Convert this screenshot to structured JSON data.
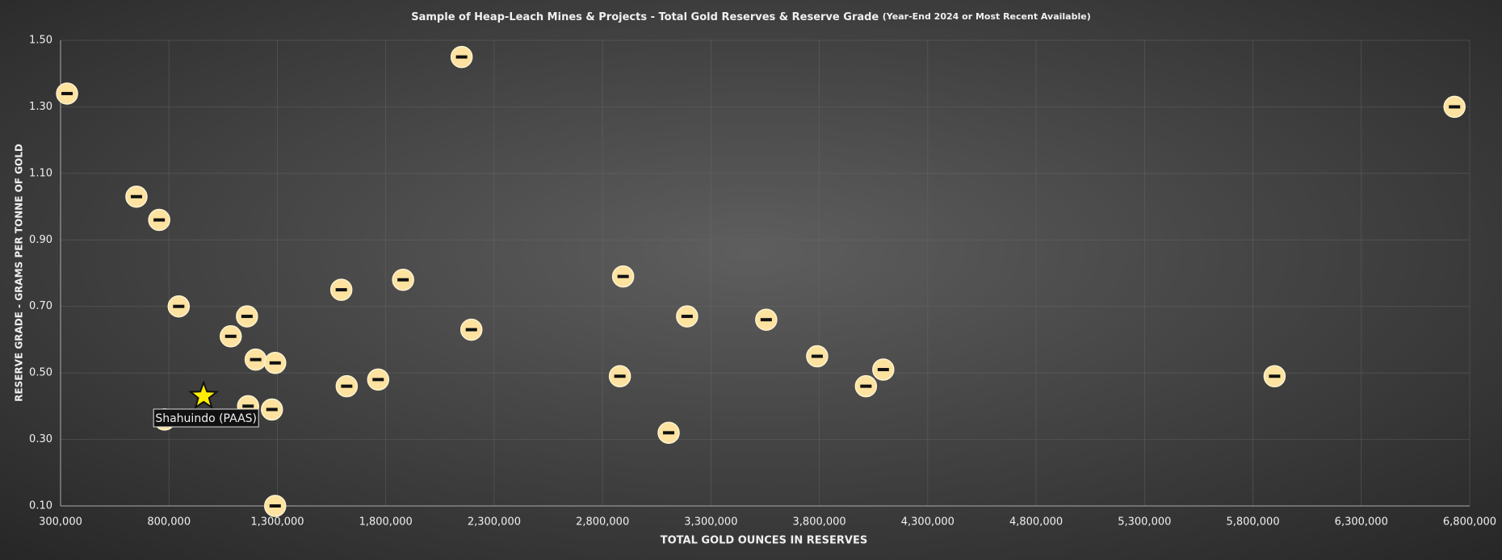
{
  "chart_data": {
    "type": "scatter",
    "title": "Sample of Heap-Leach Mines & Projects - Total Gold Reserves & Reserve Grade",
    "subtitle": "(Year-End 2024 or Most Recent Available)",
    "x_label": "TOTAL GOLD OUNCES IN RESERVES",
    "y_label": "RESERVE GRADE - GRAMS PER TONNE OF GOLD",
    "color": "#fde2a0",
    "x": [
      330000,
      2150000,
      6730000,
      650000,
      755000,
      845000,
      1160000,
      1085000,
      1200000,
      1290000,
      1595000,
      1880000,
      2195000,
      1620000,
      1765000,
      1165000,
      1275000,
      1290000,
      2895000,
      3190000,
      3555000,
      2880000,
      3105000,
      3790000,
      4015000,
      4095000,
      5900000,
      780000
    ],
    "values": [
      1.34,
      1.45,
      1.3,
      1.03,
      0.96,
      0.7,
      0.67,
      0.61,
      0.54,
      0.53,
      0.75,
      0.78,
      0.63,
      0.46,
      0.48,
      0.4,
      0.39,
      0.1,
      0.79,
      0.67,
      0.66,
      0.49,
      0.32,
      0.55,
      0.46,
      0.51,
      0.49,
      0.36
    ],
    "highlight": {
      "x": 960000,
      "value": 0.43,
      "label": "Shahuindo (PAAS)",
      "color": "#ffee00"
    },
    "xlim": [
      300000,
      6800000
    ],
    "ylim": [
      0.1,
      1.5
    ],
    "xticks": [
      {
        "value": 300000,
        "label": "300,000"
      },
      {
        "value": 800000,
        "label": "800,000"
      },
      {
        "value": 1300000,
        "label": "1,300,000"
      },
      {
        "value": 1800000,
        "label": "1,800,000"
      },
      {
        "value": 2300000,
        "label": "2,300,000"
      },
      {
        "value": 2800000,
        "label": "2,800,000"
      },
      {
        "value": 3300000,
        "label": "3,300,000"
      },
      {
        "value": 3800000,
        "label": "3,800,000"
      },
      {
        "value": 4300000,
        "label": "4,300,000"
      },
      {
        "value": 4800000,
        "label": "4,800,000"
      },
      {
        "value": 5300000,
        "label": "5,300,000"
      },
      {
        "value": 5800000,
        "label": "5,800,000"
      },
      {
        "value": 6300000,
        "label": "6,300,000"
      },
      {
        "value": 6800000,
        "label": "6,800,000"
      }
    ],
    "yticks": [
      {
        "value": 0.1,
        "label": "0.10"
      },
      {
        "value": 0.3,
        "label": "0.30"
      },
      {
        "value": 0.5,
        "label": "0.50"
      },
      {
        "value": 0.7,
        "label": "0.70"
      },
      {
        "value": 0.9,
        "label": "0.90"
      },
      {
        "value": 1.1,
        "label": "1.10"
      },
      {
        "value": 1.3,
        "label": "1.30"
      },
      {
        "value": 1.5,
        "label": "1.50"
      }
    ],
    "grid": true
  }
}
